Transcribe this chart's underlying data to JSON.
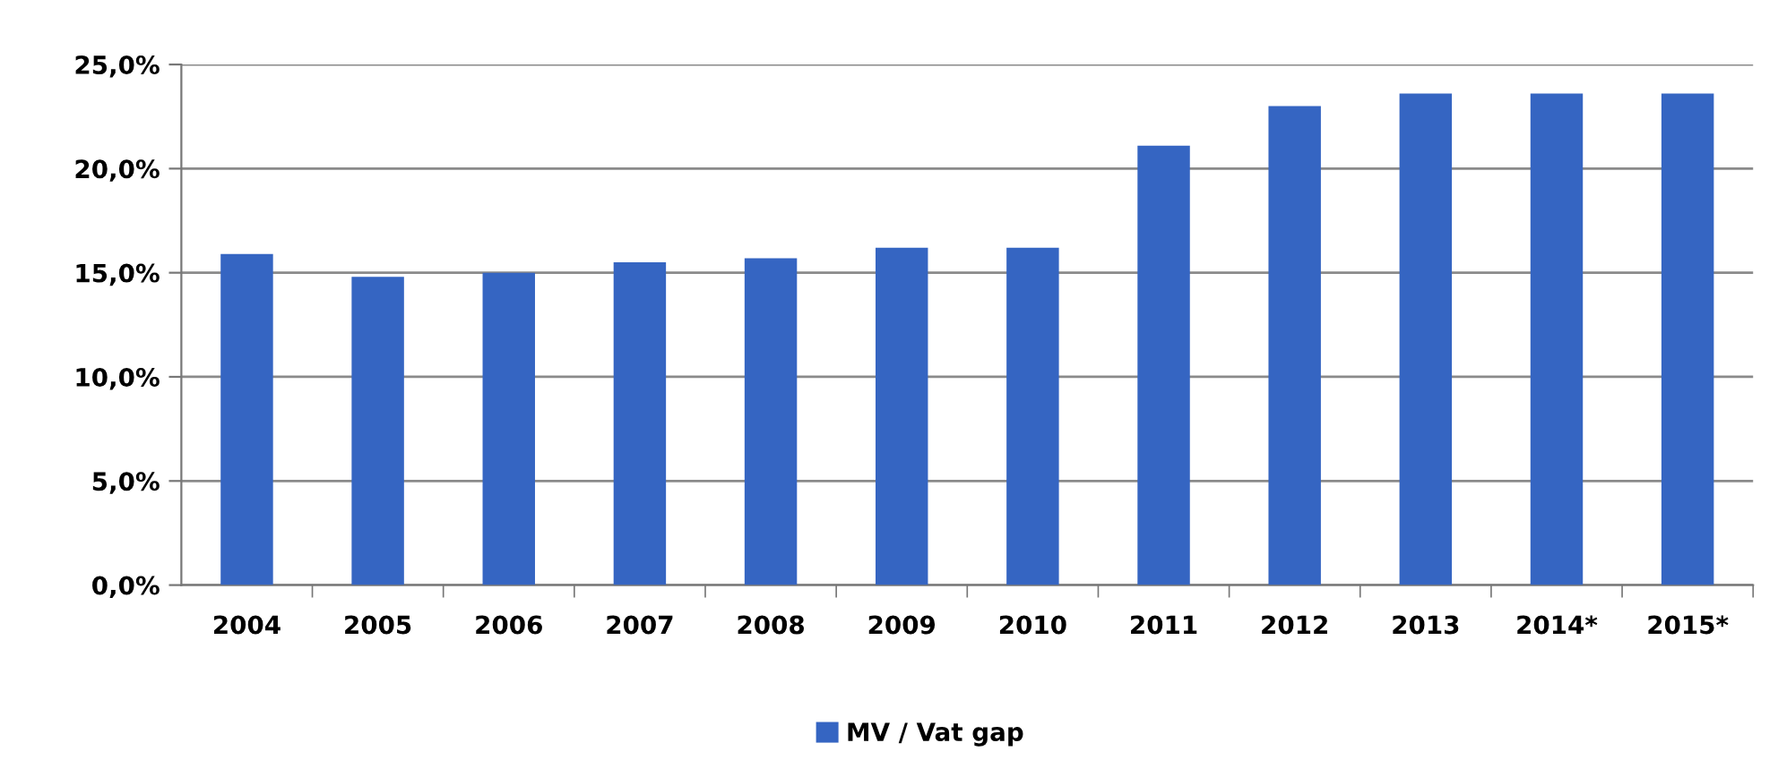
{
  "chart_data": {
    "type": "bar",
    "categories": [
      "2004",
      "2005",
      "2006",
      "2007",
      "2008",
      "2009",
      "2010",
      "2011",
      "2012",
      "2013",
      "2014*",
      "2015*"
    ],
    "series": [
      {
        "name": "MV / Vat gap",
        "color": "#3565c2",
        "values": [
          15.9,
          14.8,
          15.0,
          15.5,
          15.7,
          16.2,
          16.2,
          21.1,
          23.0,
          23.6,
          23.6,
          23.6
        ]
      }
    ],
    "ylim": [
      0,
      25
    ],
    "yticks": [
      {
        "value": 0,
        "label": "0,0%"
      },
      {
        "value": 5,
        "label": "5,0%"
      },
      {
        "value": 10,
        "label": "10,0%"
      },
      {
        "value": 15,
        "label": "15,0%"
      },
      {
        "value": 20,
        "label": "20,0%"
      },
      {
        "value": 25,
        "label": "25,0%"
      }
    ],
    "grid": "y",
    "legend": "bottom"
  }
}
